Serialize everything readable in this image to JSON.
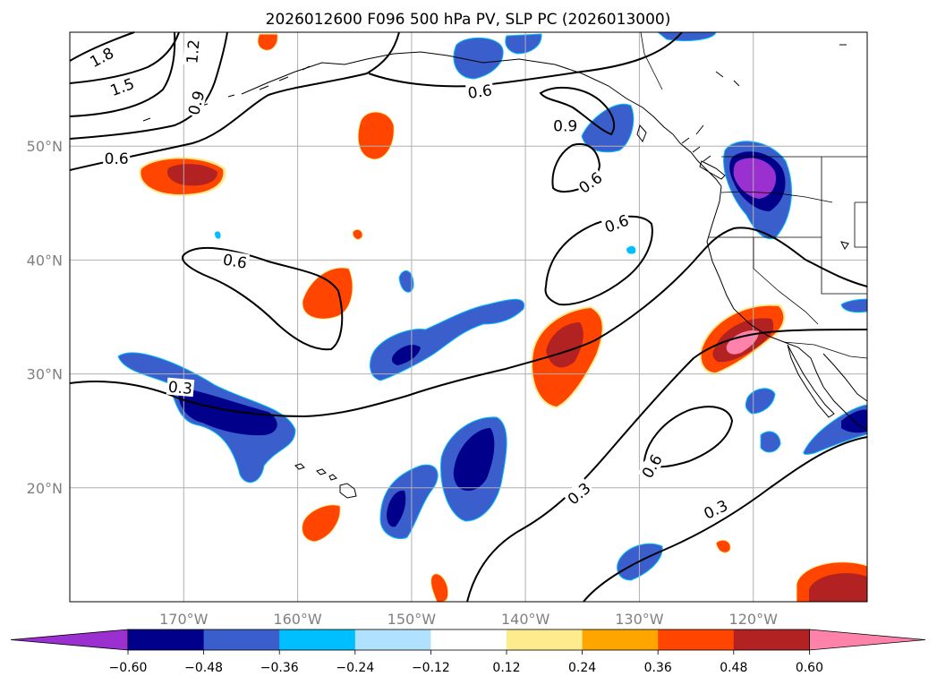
{
  "title": "2026012600 F096 500 hPa PV, SLP PC (2026013000)",
  "map": {
    "lon_range": [
      -180,
      -110
    ],
    "lat_range": [
      10,
      60
    ],
    "lon_ticks": [
      {
        "value": -170,
        "label": "170°W"
      },
      {
        "value": -160,
        "label": "160°W"
      },
      {
        "value": -150,
        "label": "150°W"
      },
      {
        "value": -140,
        "label": "140°W"
      },
      {
        "value": -130,
        "label": "130°W"
      },
      {
        "value": -120,
        "label": "120°W"
      }
    ],
    "lat_ticks": [
      {
        "value": 20,
        "label": "20°N"
      },
      {
        "value": 30,
        "label": "30°N"
      },
      {
        "value": 40,
        "label": "40°N"
      },
      {
        "value": 50,
        "label": "50°N"
      }
    ],
    "grid": true
  },
  "colorbar": {
    "colors": [
      "#9b30d0",
      "#00008b",
      "#3a5fcd",
      "#00bfff",
      "#b0e2ff",
      "#ffffff",
      "#fdeb8e",
      "#ffa500",
      "#ff4500",
      "#b22222",
      "#ff82ab"
    ],
    "tick_labels": [
      "−0.60",
      "−0.48",
      "−0.36",
      "−0.24",
      "−0.12",
      "0.12",
      "0.24",
      "0.36",
      "0.48",
      "0.60"
    ],
    "extend": "both"
  },
  "contour_labels": [
    {
      "text": "1.8",
      "lon": -177.2,
      "lat": 57.8,
      "rot": -28
    },
    {
      "text": "1.5",
      "lon": -175.4,
      "lat": 55.2,
      "rot": -20
    },
    {
      "text": "1.2",
      "lon": -169.2,
      "lat": 58.3,
      "rot": -85
    },
    {
      "text": "0.9",
      "lon": -168.9,
      "lat": 53.8,
      "rot": -75
    },
    {
      "text": "0.6",
      "lon": -175.9,
      "lat": 48.9,
      "rot": 0
    },
    {
      "text": "0.6",
      "lon": -144.0,
      "lat": 54.8,
      "rot": -8
    },
    {
      "text": "0.9",
      "lon": -136.5,
      "lat": 51.8,
      "rot": 0
    },
    {
      "text": "0.6",
      "lon": -134.3,
      "lat": 46.8,
      "rot": -35
    },
    {
      "text": "0.6",
      "lon": -132.0,
      "lat": 43.2,
      "rot": -20
    },
    {
      "text": "0.6",
      "lon": -165.5,
      "lat": 39.9,
      "rot": 10
    },
    {
      "text": "0.3",
      "lon": -170.3,
      "lat": 28.8,
      "rot": 5
    },
    {
      "text": "0.6",
      "lon": -128.9,
      "lat": 21.9,
      "rot": -60
    },
    {
      "text": "0.3",
      "lon": -135.3,
      "lat": 19.5,
      "rot": -40
    },
    {
      "text": "0.3",
      "lon": -123.3,
      "lat": 18.1,
      "rot": -25
    }
  ]
}
